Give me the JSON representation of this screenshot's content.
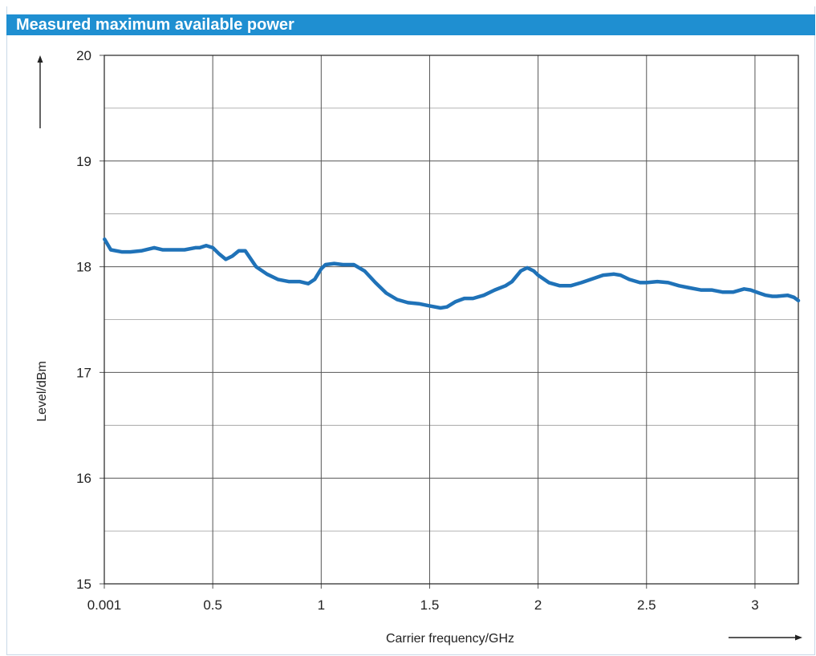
{
  "header": {
    "title": "Measured maximum available power"
  },
  "colors": {
    "header_bg": "#1f8fd1",
    "line": "#1f72b8",
    "grid": "#555555",
    "minor_grid": "#9a9a9a"
  },
  "chart_data": {
    "type": "line",
    "title": "Measured maximum available power",
    "xlabel": "Carrier frequency/GHz",
    "ylabel": "Level/dBm",
    "xlim": [
      0.001,
      3.2
    ],
    "ylim": [
      15,
      20
    ],
    "x_ticks": [
      0.001,
      0.5,
      1,
      1.5,
      2,
      2.5,
      3
    ],
    "x_tick_labels": [
      "0.001",
      "0.5",
      "1",
      "1.5",
      "2",
      "2.5",
      "3"
    ],
    "y_ticks": [
      15,
      16,
      17,
      18,
      19,
      20
    ],
    "y_tick_labels": [
      "15",
      "16",
      "17",
      "18",
      "19",
      "20"
    ],
    "grid": true,
    "series": [
      {
        "x": [
          0.001,
          0.03,
          0.08,
          0.12,
          0.17,
          0.23,
          0.27,
          0.32,
          0.37,
          0.42,
          0.44,
          0.47,
          0.5,
          0.53,
          0.56,
          0.59,
          0.62,
          0.65,
          0.7,
          0.75,
          0.8,
          0.85,
          0.9,
          0.94,
          0.97,
          1.0,
          1.02,
          1.06,
          1.1,
          1.15,
          1.2,
          1.25,
          1.3,
          1.35,
          1.4,
          1.45,
          1.5,
          1.55,
          1.58,
          1.62,
          1.66,
          1.7,
          1.75,
          1.8,
          1.85,
          1.88,
          1.92,
          1.95,
          1.98,
          2.0,
          2.05,
          2.1,
          2.15,
          2.2,
          2.3,
          2.35,
          2.38,
          2.42,
          2.47,
          2.5,
          2.55,
          2.6,
          2.65,
          2.7,
          2.75,
          2.8,
          2.85,
          2.9,
          2.95,
          2.98,
          3.02,
          3.05,
          3.08,
          3.1,
          3.15,
          3.18,
          3.2
        ],
        "y": [
          18.26,
          18.16,
          18.14,
          18.14,
          18.15,
          18.18,
          18.16,
          18.16,
          18.16,
          18.18,
          18.18,
          18.2,
          18.18,
          18.12,
          18.07,
          18.1,
          18.15,
          18.15,
          18.0,
          17.93,
          17.88,
          17.86,
          17.86,
          17.84,
          17.88,
          17.98,
          18.02,
          18.03,
          18.02,
          18.02,
          17.96,
          17.85,
          17.75,
          17.69,
          17.66,
          17.65,
          17.63,
          17.61,
          17.62,
          17.67,
          17.7,
          17.7,
          17.73,
          17.78,
          17.82,
          17.86,
          17.96,
          17.99,
          17.96,
          17.92,
          17.85,
          17.82,
          17.82,
          17.85,
          17.92,
          17.93,
          17.92,
          17.88,
          17.85,
          17.85,
          17.86,
          17.85,
          17.82,
          17.8,
          17.78,
          17.78,
          17.76,
          17.76,
          17.79,
          17.78,
          17.75,
          17.73,
          17.72,
          17.72,
          17.73,
          17.71,
          17.68
        ]
      }
    ]
  }
}
